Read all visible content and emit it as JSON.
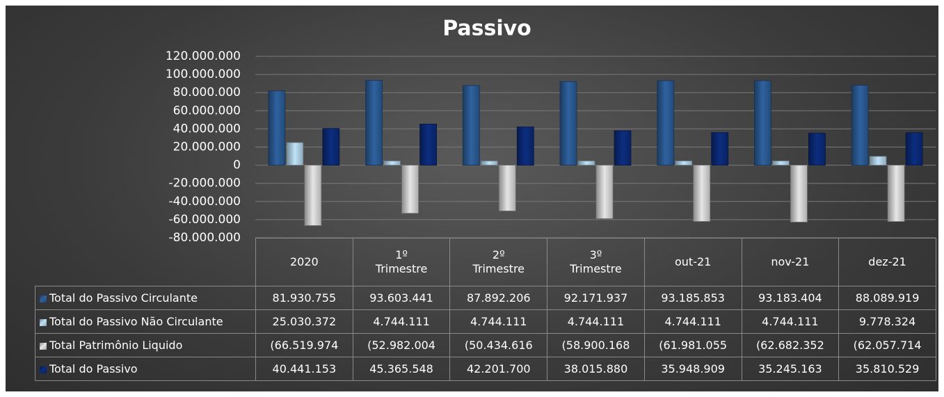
{
  "chart_data": {
    "type": "bar",
    "title": "Passivo",
    "categories": [
      "2020",
      "1º Trimestre",
      "2º Trimestre",
      "3º Trimestre",
      "out-21",
      "nov-21",
      "dez-21"
    ],
    "series": [
      {
        "name": "Total do Passivo Circulante",
        "color": "#2f62a0",
        "values": [
          81930755,
          93603441,
          87892206,
          92171937,
          93185853,
          93183404,
          88089919
        ],
        "value_labels": [
          "81.930.755",
          "93.603.441",
          "87.892.206",
          "92.171.937",
          "93.185.853",
          "93.183.404",
          "88.089.919"
        ]
      },
      {
        "name": "Total do Passivo Não Circulante",
        "color": "#bfe2f7",
        "values": [
          25030372,
          4744111,
          4744111,
          4744111,
          4744111,
          4744111,
          9778324
        ],
        "value_labels": [
          "25.030.372",
          "4.744.111",
          "4.744.111",
          "4.744.111",
          "4.744.111",
          "4.744.111",
          "9.778.324"
        ]
      },
      {
        "name": "Total Patrimônio Liquido",
        "color": "#e6e6e6",
        "values": [
          -66519974,
          -52982004,
          -50434616,
          -58900168,
          -61981055,
          -62682352,
          -62057714
        ],
        "value_labels": [
          "(66.519.974",
          "(52.982.004",
          "(50.434.616",
          "(58.900.168",
          "(61.981.055",
          "(62.682.352",
          "(62.057.714"
        ]
      },
      {
        "name": "Total do Passivo",
        "color": "#0c2d80",
        "values": [
          40441153,
          45365548,
          42201700,
          38015880,
          35948909,
          35245163,
          35810529
        ],
        "value_labels": [
          "40.441.153",
          "45.365.548",
          "42.201.700",
          "38.015.880",
          "35.948.909",
          "35.245.163",
          "35.810.529"
        ]
      }
    ],
    "ylim": [
      -80000000,
      120000000
    ],
    "yticks": [
      {
        "value": -80000000,
        "label": "-80.000.000"
      },
      {
        "value": -60000000,
        "label": "-60.000.000"
      },
      {
        "value": -40000000,
        "label": "-40.000.000"
      },
      {
        "value": -20000000,
        "label": "-20.000.000"
      },
      0,
      {
        "value": 20000000,
        "label": "20.000.000"
      },
      {
        "value": 40000000,
        "label": "40.000.000"
      },
      {
        "value": 60000000,
        "label": "60.000.000"
      },
      {
        "value": 80000000,
        "label": "80.000.000"
      },
      {
        "value": 100000000,
        "label": "100.000.000"
      },
      {
        "value": 120000000,
        "label": "120.000.000"
      }
    ],
    "grid": true
  }
}
